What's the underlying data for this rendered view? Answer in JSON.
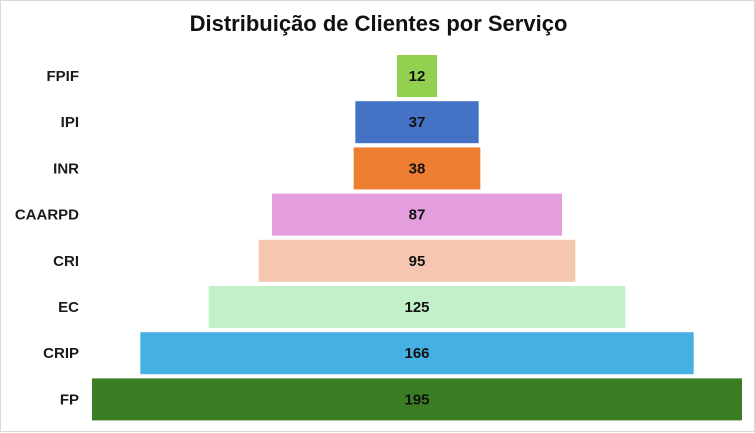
{
  "chart_data": {
    "type": "bar",
    "orientation": "horizontal-funnel",
    "title": "Distribuição de Clientes por Serviço",
    "categories": [
      "FPIF",
      "IPI",
      "INR",
      "CAARPD",
      "CRI",
      "EC",
      "CRIP",
      "FP"
    ],
    "values": [
      12,
      37,
      38,
      87,
      95,
      125,
      166,
      195
    ],
    "colors": [
      "#92d050",
      "#4472c4",
      "#ed7d31",
      "#e49edd",
      "#f5c7b0",
      "#c2f0c8",
      "#45b0e1",
      "#3a7d22"
    ],
    "data_labels": [
      "12",
      "37",
      "38",
      "87",
      "95",
      "125",
      "166",
      "195"
    ],
    "grid": false,
    "legend": "none"
  }
}
